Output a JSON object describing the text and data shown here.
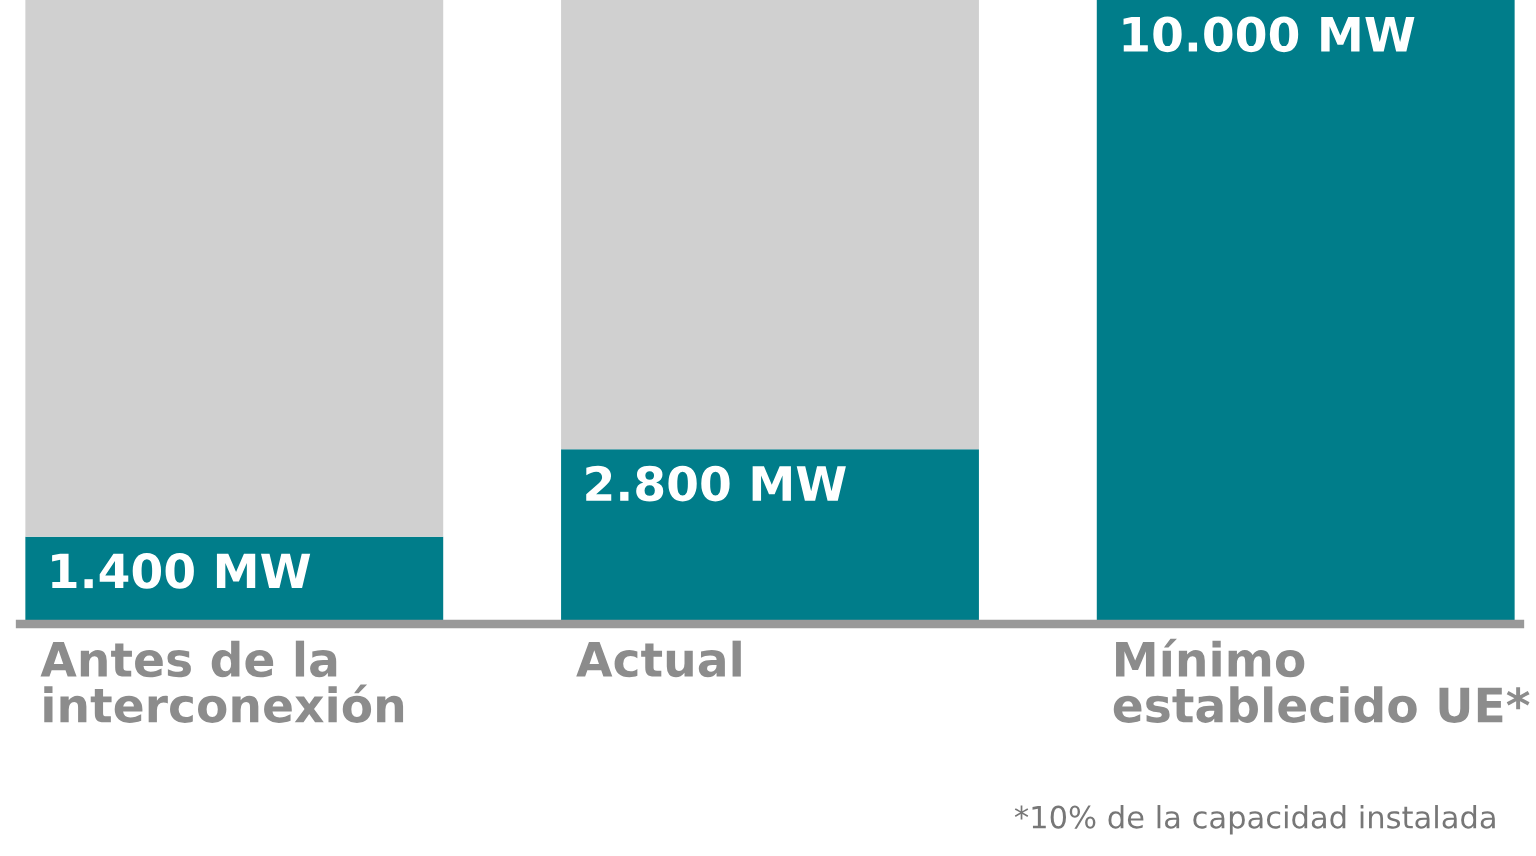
{
  "chart_data": {
    "type": "bar",
    "stacked": true,
    "categories": [
      "Antes de la\ninterconexión",
      "Actual",
      "Mínimo\nestablecido UE*"
    ],
    "series": [
      {
        "color": "#007d8a",
        "values": [
          1400,
          2800,
          10000
        ],
        "value_labels": [
          "1.400 MW",
          "2.800 MW",
          "10.000 MW"
        ]
      },
      {
        "color": "#d0d0d0",
        "values": [
          8600,
          7200,
          null
        ]
      }
    ],
    "ylim": [
      0,
      10000
    ],
    "tick_labels": "x",
    "annotations": [
      "*10% de la capacidad instalada"
    ]
  }
}
